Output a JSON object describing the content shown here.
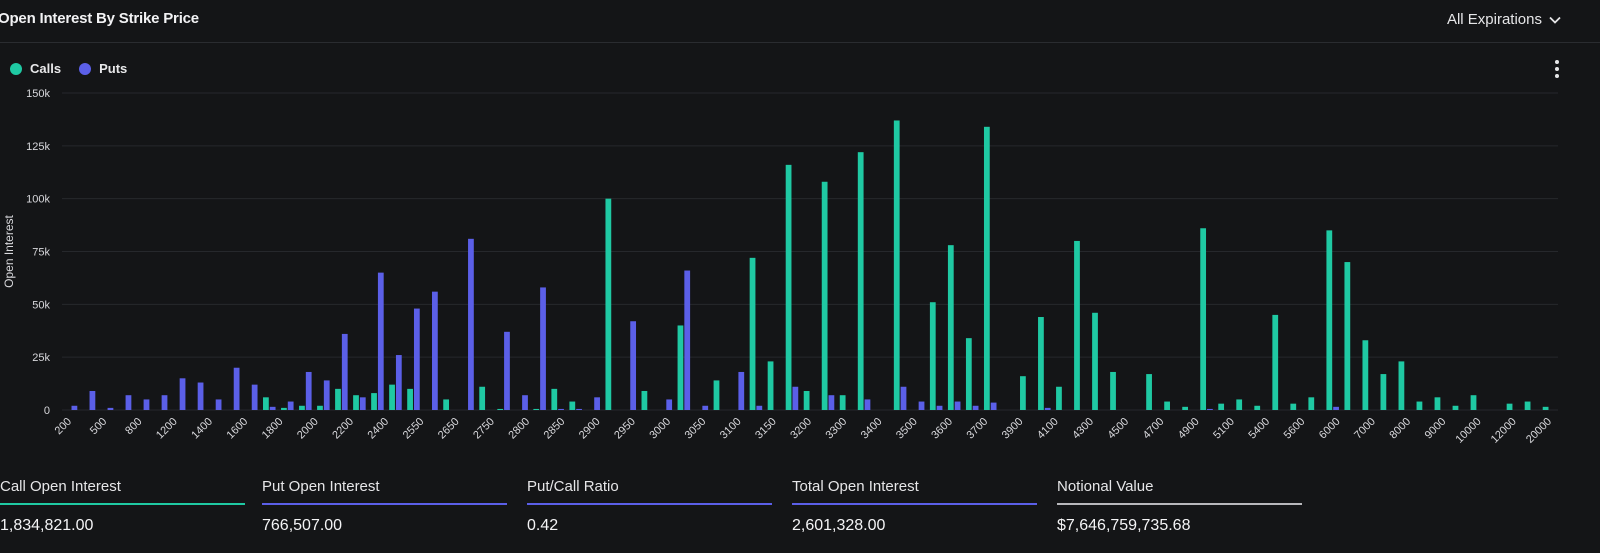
{
  "header": {
    "title": "Open Interest By Strike Price",
    "expiry_label": "All Expirations"
  },
  "legend": {
    "calls": "Calls",
    "puts": "Puts"
  },
  "colors": {
    "calls": "#1fc9a3",
    "puts": "#5b5fe8",
    "background": "#141517",
    "grid": "#26282c"
  },
  "chart_data": {
    "type": "bar",
    "ylabel": "Open Interest",
    "ylim": [
      0,
      150000
    ],
    "y_ticks": [
      "0",
      "25k",
      "50k",
      "75k",
      "100k",
      "125k",
      "150k"
    ],
    "x_tick_labels": [
      "200",
      "500",
      "800",
      "1200",
      "1400",
      "1600",
      "1800",
      "2000",
      "2200",
      "2400",
      "2550",
      "2650",
      "2750",
      "2800",
      "2850",
      "2900",
      "2950",
      "3000",
      "3050",
      "3100",
      "3150",
      "3200",
      "3300",
      "3400",
      "3500",
      "3600",
      "3700",
      "3900",
      "4100",
      "4300",
      "4500",
      "4700",
      "4900",
      "5100",
      "5400",
      "5600",
      "6000",
      "7000",
      "8000",
      "9000",
      "10000",
      "12000",
      "20000"
    ],
    "series": [
      {
        "name": "Calls",
        "values": [
          0,
          0,
          0,
          0,
          0,
          0,
          0,
          0,
          0,
          0,
          0,
          6000,
          1000,
          2000,
          2000,
          10000,
          7000,
          8000,
          12000,
          10000,
          0,
          5000,
          0,
          11000,
          500,
          0,
          500,
          10000,
          4000,
          0,
          100000,
          0,
          9000,
          0,
          40000,
          0,
          14000,
          0,
          72000,
          23000,
          116000,
          9000,
          108000,
          7000,
          122000,
          0,
          137000,
          0,
          51000,
          78000,
          34000,
          134000,
          0,
          16000,
          44000,
          11000,
          80000,
          46000,
          18000,
          0,
          17000,
          4000,
          1500,
          86000,
          3000,
          5000,
          2000,
          45000,
          3000,
          6000,
          85000,
          70000,
          33000,
          17000,
          23000,
          4000,
          6000,
          2000,
          7000,
          0,
          3000,
          4000,
          1500
        ]
      },
      {
        "name": "Puts",
        "values": [
          2000,
          9000,
          1000,
          7000,
          5000,
          7000,
          15000,
          13000,
          5000,
          20000,
          12000,
          1500,
          4000,
          18000,
          14000,
          36000,
          6000,
          65000,
          26000,
          48000,
          56000,
          0,
          81000,
          0,
          37000,
          7000,
          58000,
          500,
          500,
          6000,
          0,
          42000,
          0,
          5000,
          66000,
          2000,
          0,
          18000,
          2000,
          0,
          11000,
          0,
          7000,
          0,
          5000,
          0,
          11000,
          4000,
          2000,
          4000,
          2000,
          3500,
          0,
          0,
          1000,
          0,
          0,
          0,
          0,
          0,
          0,
          0,
          0,
          500,
          0,
          0,
          0,
          0,
          0,
          0,
          1500,
          0,
          0,
          0,
          0,
          0,
          0,
          0,
          0,
          0,
          0,
          0,
          0
        ]
      }
    ]
  },
  "stats": [
    {
      "label": "Call Open Interest",
      "value": "1,834,821.00",
      "color": "#1fc9a3"
    },
    {
      "label": "Put Open Interest",
      "value": "766,507.00",
      "color": "#5b5fe8"
    },
    {
      "label": "Put/Call Ratio",
      "value": "0.42",
      "color": "#5b5fe8"
    },
    {
      "label": "Total Open Interest",
      "value": "2,601,328.00",
      "color": "#5b5fe8"
    },
    {
      "label": "Notional Value",
      "value": "$7,646,759,735.68",
      "color": "#b8b8bc"
    }
  ]
}
